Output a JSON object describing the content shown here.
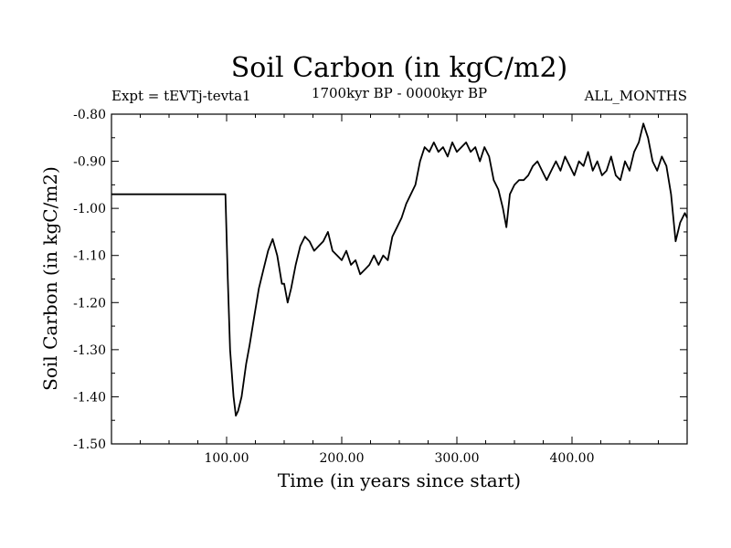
{
  "chart_data": {
    "type": "line",
    "title": "Soil Carbon (in kgC/m2)",
    "subtitle": "1700kyr BP - 0000kyr BP",
    "left_label": "Expt = tEVTj-tevta1",
    "right_label": "ALL_MONTHS",
    "xlabel": "Time (in years since start)",
    "ylabel": "Soil Carbon (in kgC/m2)",
    "xlim": [
      0,
      500
    ],
    "ylim": [
      -1.5,
      -0.8
    ],
    "x_ticks": [
      100,
      200,
      300,
      400
    ],
    "x_tick_labels": [
      "100.00",
      "200.00",
      "300.00",
      "400.00"
    ],
    "y_ticks": [
      -1.5,
      -1.4,
      -1.3,
      -1.2,
      -1.1,
      -1.0,
      -0.9,
      -0.8
    ],
    "y_tick_labels": [
      "-1.50",
      "-1.40",
      "-1.30",
      "-1.20",
      "-1.10",
      "-1.00",
      "-0.90",
      "-0.80"
    ],
    "series": [
      {
        "name": "Soil Carbon",
        "x": [
          0,
          50,
          99,
          101,
          103,
          106,
          108,
          110,
          113,
          117,
          120,
          124,
          128,
          132,
          136,
          140,
          144,
          148,
          150,
          153,
          156,
          160,
          164,
          168,
          172,
          176,
          180,
          184,
          188,
          192,
          196,
          200,
          204,
          208,
          212,
          216,
          220,
          224,
          228,
          232,
          236,
          240,
          244,
          248,
          252,
          256,
          260,
          264,
          268,
          272,
          276,
          280,
          284,
          288,
          292,
          296,
          300,
          304,
          308,
          312,
          316,
          320,
          324,
          328,
          332,
          336,
          340,
          343,
          346,
          350,
          354,
          358,
          362,
          366,
          370,
          374,
          378,
          382,
          386,
          390,
          394,
          398,
          402,
          406,
          410,
          414,
          418,
          422,
          426,
          430,
          434,
          438,
          442,
          446,
          450,
          454,
          458,
          462,
          466,
          470,
          474,
          478,
          482,
          486,
          490,
          494,
          498,
          500
        ],
        "y": [
          -0.97,
          -0.97,
          -0.97,
          -1.15,
          -1.3,
          -1.4,
          -1.44,
          -1.43,
          -1.4,
          -1.33,
          -1.29,
          -1.23,
          -1.17,
          -1.13,
          -1.09,
          -1.065,
          -1.1,
          -1.16,
          -1.16,
          -1.2,
          -1.17,
          -1.12,
          -1.08,
          -1.06,
          -1.07,
          -1.09,
          -1.08,
          -1.07,
          -1.05,
          -1.09,
          -1.1,
          -1.11,
          -1.09,
          -1.12,
          -1.11,
          -1.14,
          -1.13,
          -1.12,
          -1.1,
          -1.12,
          -1.1,
          -1.11,
          -1.06,
          -1.04,
          -1.02,
          -0.99,
          -0.97,
          -0.95,
          -0.9,
          -0.87,
          -0.88,
          -0.86,
          -0.88,
          -0.87,
          -0.89,
          -0.86,
          -0.88,
          -0.87,
          -0.86,
          -0.88,
          -0.87,
          -0.9,
          -0.87,
          -0.89,
          -0.94,
          -0.96,
          -1.0,
          -1.04,
          -0.97,
          -0.95,
          -0.94,
          -0.94,
          -0.93,
          -0.91,
          -0.9,
          -0.92,
          -0.94,
          -0.92,
          -0.9,
          -0.92,
          -0.89,
          -0.91,
          -0.93,
          -0.9,
          -0.91,
          -0.88,
          -0.92,
          -0.9,
          -0.93,
          -0.92,
          -0.89,
          -0.93,
          -0.94,
          -0.9,
          -0.92,
          -0.88,
          -0.86,
          -0.82,
          -0.85,
          -0.9,
          -0.92,
          -0.89,
          -0.91,
          -0.97,
          -1.07,
          -1.03,
          -1.01,
          -1.02
        ]
      }
    ]
  }
}
